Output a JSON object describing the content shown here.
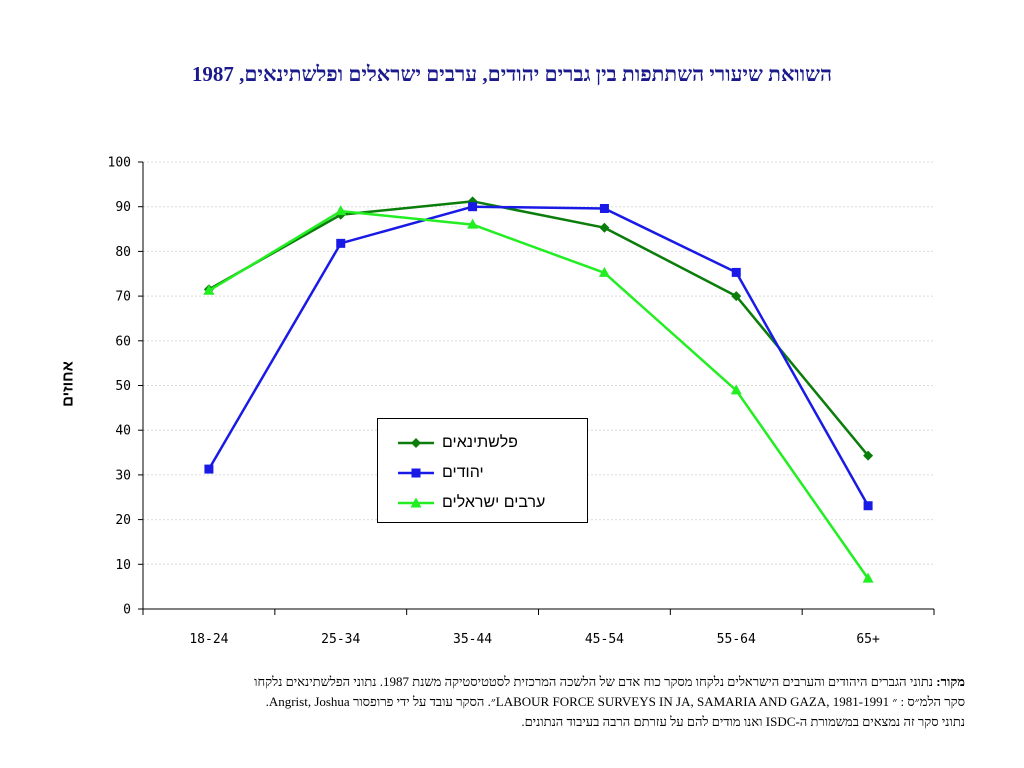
{
  "title": "השוואת שיעורי השתתפות בין גברים יהודים, ערבים ישראלים ופלשתינאים, 1987",
  "chart_data": {
    "type": "line",
    "title": "השוואת שיעורי השתתפות בין גברים יהודים, ערבים ישראלים ופלשתינאים, 1987",
    "xlabel": "",
    "ylabel": "אחוזים",
    "ylim": [
      0,
      100
    ],
    "yticks": [
      0,
      10,
      20,
      30,
      40,
      50,
      60,
      70,
      80,
      90,
      100
    ],
    "grid": true,
    "legend_position": "center",
    "categories": [
      "18-24",
      "25-34",
      "35-44",
      "45-54",
      "55-64",
      "65+"
    ],
    "series": [
      {
        "name": "פלשתינאים",
        "color": "#0a7d0a",
        "marker": "diamond",
        "values": [
          71.5,
          88.2,
          91.2,
          85.3,
          70.0,
          34.3
        ]
      },
      {
        "name": "יהודים",
        "color": "#1a1ae6",
        "marker": "square",
        "values": [
          31.3,
          81.8,
          90.0,
          89.6,
          75.3,
          23.1
        ]
      },
      {
        "name": "ערבים ישראלים",
        "color": "#22ee22",
        "marker": "triangle",
        "values": [
          71.2,
          89.0,
          86.0,
          75.2,
          48.9,
          6.8
        ]
      }
    ]
  },
  "note": {
    "label": "מקור:",
    "line1": "נתוני הגברים היהודים והערבים הישראלים נלקחו מסקר כוח אדם של הלשכה המרכזית לסטטיסטיקה משנת 1987. נתוני הפלשתינאים נלקחו",
    "line2": "סקר הלמ״ס : ״ 1981-1991 ,LABOUR FORCE SURVEYS IN JA, SAMARIA AND GAZA״. הסקר עובד על ידי פרופסור Angrist, Joshua.",
    "line3": "נתוני סקר זה נמצאים במשמורת ה-ISDC ואנו מודים להם על עזרתם הרבה בעיבוד הנתונים."
  }
}
